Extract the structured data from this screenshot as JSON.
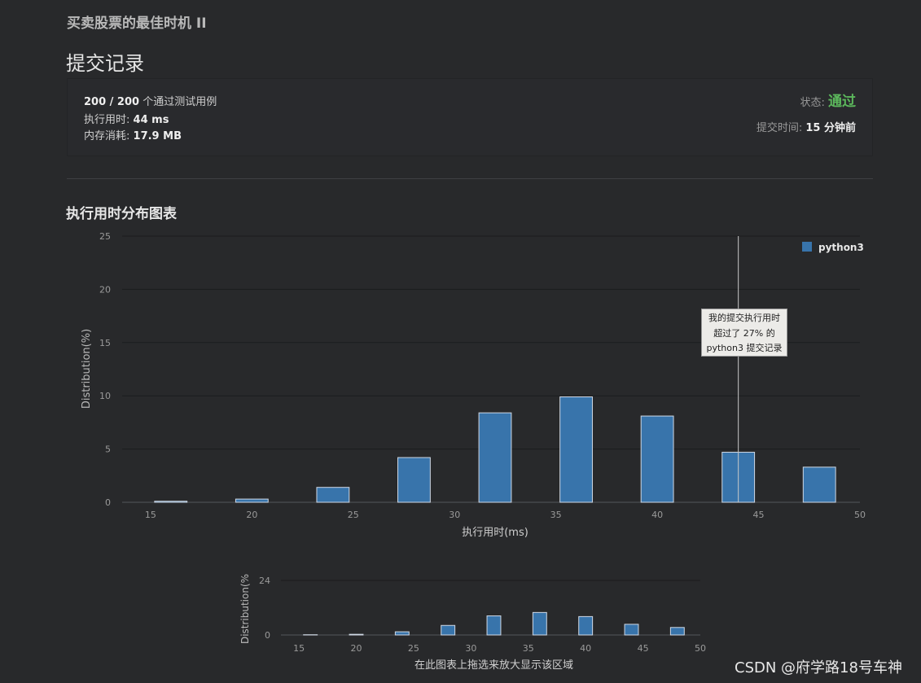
{
  "problem_title": "买卖股票的最佳时机 II",
  "page_title": "提交记录",
  "summary": {
    "testcases_passed": "200 / 200",
    "testcases_suffix": "个通过测试用例",
    "runtime_label": "执行用时:",
    "runtime_value": "44 ms",
    "memory_label": "内存消耗:",
    "memory_value": "17.9 MB",
    "status_label": "状态:",
    "status_value": "通过",
    "submit_time_label": "提交时间:",
    "submit_time_value": "15 分钟前"
  },
  "chart_title": "执行用时分布图表",
  "tooltip": {
    "line1": "我的提交执行用时",
    "line2": "超过了 27% 的",
    "line3": "python3 提交记录"
  },
  "colors": {
    "bar": "#3874ab",
    "pass": "#5cb85c",
    "background": "#28292b"
  },
  "chart_data": [
    {
      "type": "bar",
      "name": "main",
      "series": [
        {
          "name": "python3",
          "x": [
            16,
            20,
            24,
            28,
            32,
            36,
            40,
            44,
            48
          ],
          "values": [
            0.1,
            0.3,
            1.4,
            4.2,
            8.4,
            9.9,
            8.1,
            4.7,
            3.3
          ]
        }
      ],
      "xlabel": "执行用时(ms)",
      "ylabel": "Distribution(%)",
      "xlim": [
        14,
        50
      ],
      "ylim": [
        0,
        25
      ],
      "xticks": [
        15,
        20,
        25,
        30,
        35,
        40,
        45,
        50
      ],
      "yticks": [
        0,
        5,
        10,
        15,
        20,
        25
      ],
      "marker_x": 44,
      "legend": "top-right"
    },
    {
      "type": "bar",
      "name": "navigator",
      "series": [
        {
          "name": "python3",
          "x": [
            16,
            20,
            24,
            28,
            32,
            36,
            40,
            44,
            48
          ],
          "values": [
            0.1,
            0.3,
            1.4,
            4.2,
            8.4,
            9.9,
            8.1,
            4.7,
            3.3
          ]
        }
      ],
      "xlabel": "在此图表上拖选来放大显示该区域",
      "ylabel": "Distribution(%",
      "xlim": [
        14,
        50
      ],
      "ylim": [
        0,
        24
      ],
      "xticks": [
        15,
        20,
        25,
        30,
        35,
        40,
        45,
        50
      ],
      "yticks": [
        0,
        24
      ]
    }
  ],
  "watermark": "CSDN @府学路18号车神"
}
